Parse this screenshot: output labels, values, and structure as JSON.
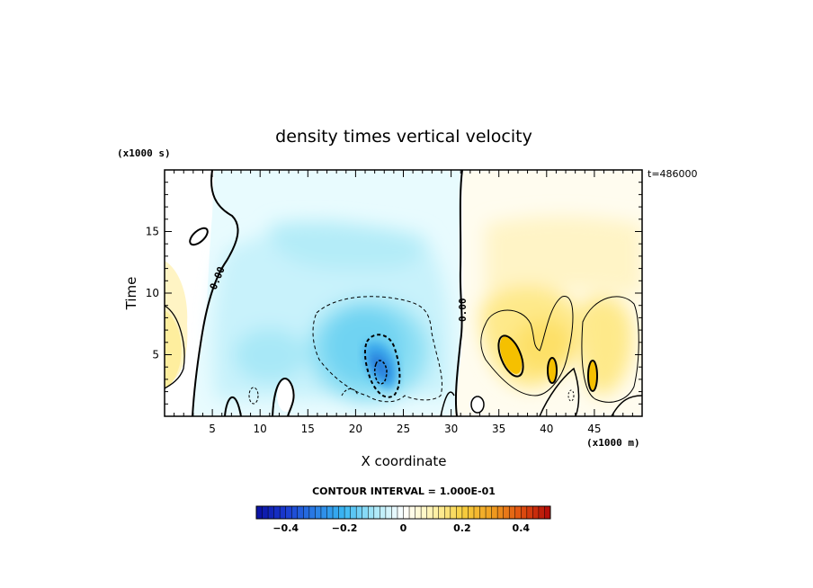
{
  "chart_data": {
    "type": "heatmap",
    "title": "density times vertical velocity",
    "xlabel": "X coordinate",
    "ylabel": "Time",
    "x_unit": "(x1000 m)",
    "y_unit": "(x1000 s)",
    "time_label": "t=486000",
    "contour_interval_text": "CONTOUR INTERVAL = 1.000E-01",
    "contour_label": "0.00",
    "xlim": [
      0,
      50
    ],
    "ylim": [
      0,
      20
    ],
    "x_ticks": [
      5,
      10,
      15,
      20,
      25,
      30,
      35,
      40,
      45
    ],
    "y_ticks": [
      5,
      10,
      15
    ],
    "colorbar": {
      "range": [
        -0.5,
        0.5
      ],
      "interval": 0.1,
      "tick_values": [
        -0.4,
        -0.2,
        0,
        0.2,
        0.4
      ],
      "tick_labels": [
        "−0.4",
        "−0.2",
        "0",
        "0.2",
        "0.4"
      ],
      "colors": {
        "deep_negative": "#1020c0",
        "mid_negative": "#2a9df0",
        "weak_negative": "#c8f2fb",
        "zero": "#ffffff",
        "weak_positive": "#fff6c0",
        "mid_positive": "#f5c000",
        "strong_positive": "#c81010"
      }
    },
    "features": [
      {
        "kind": "negative",
        "x": [
          3,
          31
        ],
        "y": [
          0,
          19.5
        ],
        "min_value": -0.35
      },
      {
        "kind": "positive",
        "x": [
          32,
          50
        ],
        "y": [
          0,
          19
        ],
        "max_value": 0.25
      },
      {
        "kind": "positive",
        "x": [
          0,
          2.5
        ],
        "y": [
          1,
          10
        ],
        "max_value": 0.05
      }
    ]
  }
}
